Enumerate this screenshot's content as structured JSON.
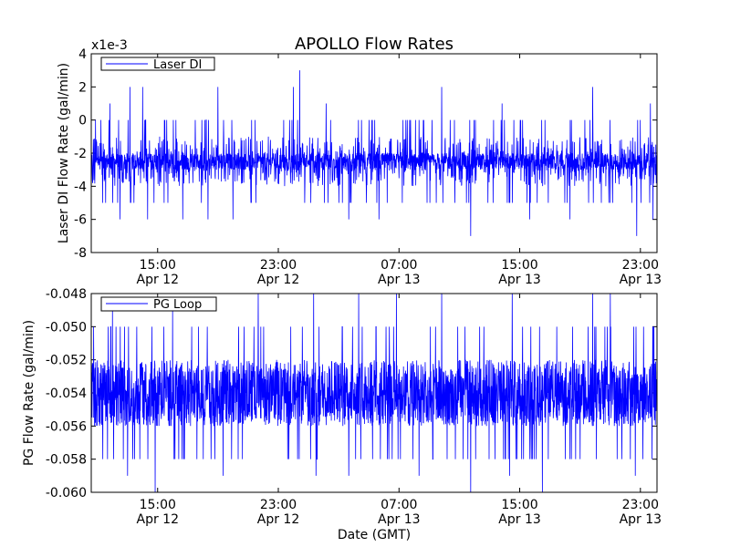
{
  "figure": {
    "title": "APOLLO Flow Rates",
    "xlabel": "Date (GMT)",
    "line_color": "#0000ff"
  },
  "chart_data": [
    {
      "type": "line",
      "title": "APOLLO Flow Rates",
      "ylabel": "Laser DI Flow Rate (gal/min)",
      "offset_text": "x1e-3",
      "ylim": [
        -8,
        4
      ],
      "yticks": [
        -8,
        -6,
        -4,
        -2,
        0,
        2,
        4
      ],
      "ytick_labels": [
        "-8",
        "-6",
        "-4",
        "-2",
        "0",
        "2",
        "4"
      ],
      "xlim": [
        "2013-04-12 10:36",
        "2013-04-14 00:06"
      ],
      "xticks": [
        "2013-04-12 15:00",
        "2013-04-12 23:00",
        "2013-04-13 07:00",
        "2013-04-13 15:00",
        "2013-04-13 23:00"
      ],
      "xtick_labels": [
        [
          "15:00",
          "Apr 12"
        ],
        [
          "23:00",
          "Apr 12"
        ],
        [
          "07:00",
          "Apr 13"
        ],
        [
          "15:00",
          "Apr 13"
        ],
        [
          "23:00",
          "Apr 13"
        ]
      ],
      "legend": {
        "label": "Laser DI",
        "placement": "top-left"
      },
      "grid": false,
      "series": [
        {
          "name": "Laser DI",
          "baseline_low": -3,
          "baseline_high": -2,
          "typical_low": -4,
          "typical_high": -1,
          "frequent_spikes": [
            0,
            -5
          ],
          "peaks": [
            {
              "t": "2013-04-12 11:50",
              "y": 1
            },
            {
              "t": "2013-04-12 13:10",
              "y": 2
            },
            {
              "t": "2013-04-12 14:00",
              "y": 2
            },
            {
              "t": "2013-04-12 19:00",
              "y": 2
            },
            {
              "t": "2013-04-13 00:00",
              "y": 2
            },
            {
              "t": "2013-04-13 00:25",
              "y": 3
            },
            {
              "t": "2013-04-13 02:10",
              "y": 1
            },
            {
              "t": "2013-04-13 09:50",
              "y": 2
            },
            {
              "t": "2013-04-13 13:50",
              "y": 1
            },
            {
              "t": "2013-04-13 19:50",
              "y": 2
            },
            {
              "t": "2013-04-13 23:40",
              "y": 1
            }
          ],
          "troughs": [
            {
              "t": "2013-04-12 12:30",
              "y": -6
            },
            {
              "t": "2013-04-12 14:20",
              "y": -6
            },
            {
              "t": "2013-04-12 16:40",
              "y": -6
            },
            {
              "t": "2013-04-12 18:20",
              "y": -6
            },
            {
              "t": "2013-04-12 20:00",
              "y": -6
            },
            {
              "t": "2013-04-13 03:40",
              "y": -6
            },
            {
              "t": "2013-04-13 05:40",
              "y": -6
            },
            {
              "t": "2013-04-13 11:45",
              "y": -7
            },
            {
              "t": "2013-04-13 15:40",
              "y": -6
            },
            {
              "t": "2013-04-13 18:20",
              "y": -6
            },
            {
              "t": "2013-04-13 22:45",
              "y": -7
            },
            {
              "t": "2013-04-13 23:50",
              "y": -6
            }
          ]
        }
      ]
    },
    {
      "type": "line",
      "ylabel": "PG Flow Rate (gal/min)",
      "ylim": [
        -0.06,
        -0.048
      ],
      "yticks": [
        -0.06,
        -0.058,
        -0.056,
        -0.054,
        -0.052,
        -0.05,
        -0.048
      ],
      "ytick_labels": [
        "-0.060",
        "-0.058",
        "-0.056",
        "-0.054",
        "-0.052",
        "-0.050",
        "-0.048"
      ],
      "xlabel": "Date (GMT)",
      "xlim": [
        "2013-04-12 10:36",
        "2013-04-14 00:06"
      ],
      "xticks": [
        "2013-04-12 15:00",
        "2013-04-12 23:00",
        "2013-04-13 07:00",
        "2013-04-13 15:00",
        "2013-04-13 23:00"
      ],
      "xtick_labels": [
        [
          "15:00",
          "Apr 12"
        ],
        [
          "23:00",
          "Apr 12"
        ],
        [
          "07:00",
          "Apr 13"
        ],
        [
          "15:00",
          "Apr 13"
        ],
        [
          "23:00",
          "Apr 13"
        ]
      ],
      "legend": {
        "label": "PG Loop",
        "placement": "top-left"
      },
      "grid": false,
      "series": [
        {
          "name": "PG Loop",
          "baseline_low": -0.0555,
          "baseline_high": -0.0525,
          "typical_low": -0.056,
          "typical_high": -0.052,
          "frequent_spikes": [
            -0.05,
            -0.058
          ],
          "peaks": [
            {
              "t": "2013-04-12 12:00",
              "y": -0.049
            },
            {
              "t": "2013-04-12 16:00",
              "y": -0.049
            },
            {
              "t": "2013-04-12 21:40",
              "y": -0.048
            },
            {
              "t": "2013-04-13 01:20",
              "y": -0.048
            },
            {
              "t": "2013-04-13 04:20",
              "y": -0.048
            },
            {
              "t": "2013-04-13 06:50",
              "y": -0.048
            },
            {
              "t": "2013-04-13 09:50",
              "y": -0.048
            },
            {
              "t": "2013-04-13 14:30",
              "y": -0.048
            },
            {
              "t": "2013-04-13 19:50",
              "y": -0.048
            },
            {
              "t": "2013-04-13 21:00",
              "y": -0.048
            }
          ],
          "troughs": [
            {
              "t": "2013-04-12 13:00",
              "y": -0.059
            },
            {
              "t": "2013-04-12 14:50",
              "y": -0.06
            },
            {
              "t": "2013-04-12 19:20",
              "y": -0.059
            },
            {
              "t": "2013-04-13 01:30",
              "y": -0.059
            },
            {
              "t": "2013-04-13 03:40",
              "y": -0.059
            },
            {
              "t": "2013-04-13 08:20",
              "y": -0.059
            },
            {
              "t": "2013-04-13 11:45",
              "y": -0.06
            },
            {
              "t": "2013-04-13 14:20",
              "y": -0.059
            },
            {
              "t": "2013-04-13 16:30",
              "y": -0.06
            },
            {
              "t": "2013-04-13 22:40",
              "y": -0.059
            }
          ]
        }
      ]
    }
  ]
}
